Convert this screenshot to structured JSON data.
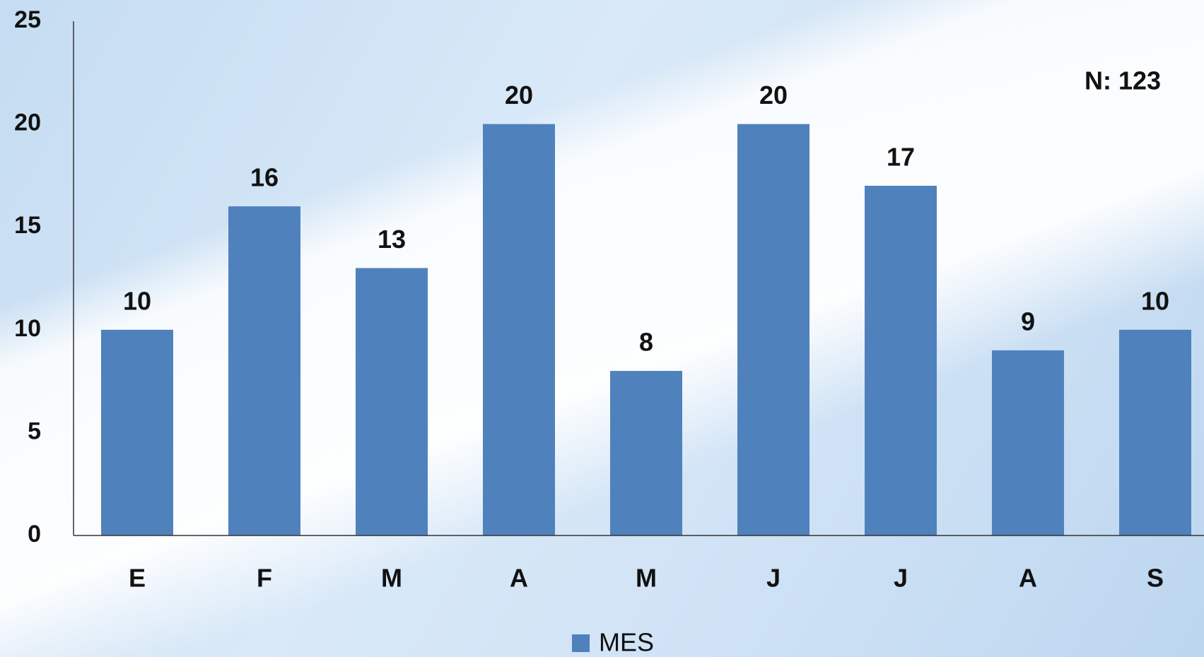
{
  "chart_data": {
    "type": "bar",
    "annotation": "N: 123",
    "categories": [
      "E",
      "F",
      "M",
      "A",
      "M",
      "J",
      "J",
      "A",
      "S"
    ],
    "series": [
      {
        "name": "MES",
        "color": "#4f81bd",
        "values": [
          10,
          16,
          13,
          20,
          8,
          20,
          17,
          9,
          10
        ]
      }
    ],
    "ylim": [
      0,
      25
    ],
    "yticks": [
      0,
      5,
      10,
      15,
      20,
      25
    ],
    "grid": false,
    "legend": "bottom"
  }
}
